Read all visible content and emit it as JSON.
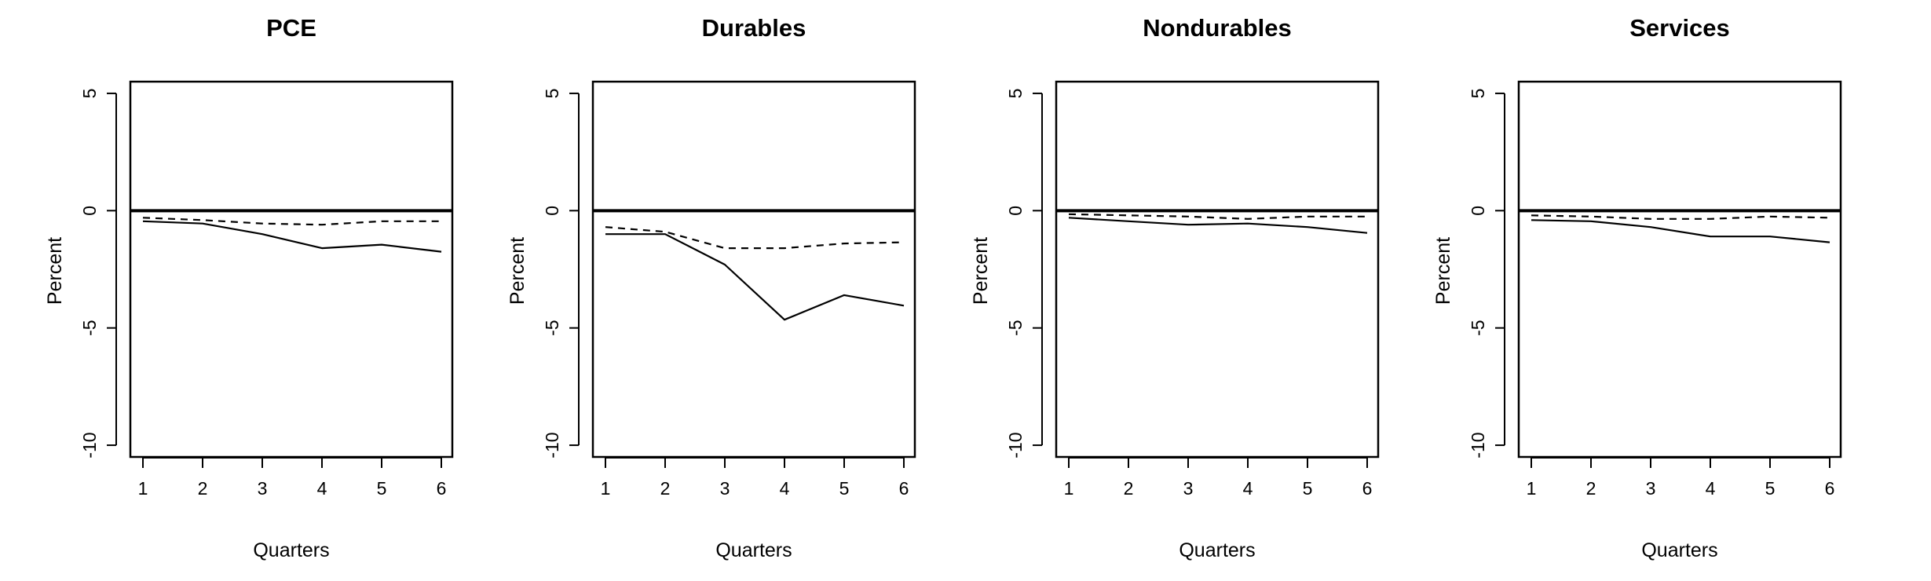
{
  "figure": {
    "chart_data": [
      {
        "type": "line",
        "title": "PCE",
        "xlabel": "Quarters",
        "ylabel": "Percent",
        "x": [
          1,
          2,
          3,
          4,
          5,
          6
        ],
        "ylim": [
          -10.5,
          5.5
        ],
        "yticks": [
          5,
          0,
          -5,
          -10
        ],
        "grid": false,
        "reference_line": 0,
        "series": [
          {
            "style": "solid",
            "values": [
              -0.45,
              -0.55,
              -1.0,
              -1.6,
              -1.45,
              -1.75
            ]
          },
          {
            "style": "dashed",
            "values": [
              -0.3,
              -0.4,
              -0.55,
              -0.6,
              -0.45,
              -0.45
            ]
          }
        ]
      },
      {
        "type": "line",
        "title": "Durables",
        "xlabel": "Quarters",
        "ylabel": "Percent",
        "x": [
          1,
          2,
          3,
          4,
          5,
          6
        ],
        "ylim": [
          -10.5,
          5.5
        ],
        "yticks": [
          5,
          0,
          -5,
          -10
        ],
        "grid": false,
        "reference_line": 0,
        "series": [
          {
            "style": "solid",
            "values": [
              -1.0,
              -1.0,
              -2.3,
              -4.65,
              -3.6,
              -4.05
            ]
          },
          {
            "style": "dashed",
            "values": [
              -0.7,
              -0.9,
              -1.6,
              -1.6,
              -1.4,
              -1.35
            ]
          }
        ]
      },
      {
        "type": "line",
        "title": "Nondurables",
        "xlabel": "Quarters",
        "ylabel": "Percent",
        "x": [
          1,
          2,
          3,
          4,
          5,
          6
        ],
        "ylim": [
          -10.5,
          5.5
        ],
        "yticks": [
          5,
          0,
          -5,
          -10
        ],
        "grid": false,
        "reference_line": 0,
        "series": [
          {
            "style": "solid",
            "values": [
              -0.3,
              -0.45,
              -0.6,
              -0.55,
              -0.7,
              -0.95
            ]
          },
          {
            "style": "dashed",
            "values": [
              -0.15,
              -0.2,
              -0.25,
              -0.35,
              -0.25,
              -0.25
            ]
          }
        ]
      },
      {
        "type": "line",
        "title": "Services",
        "xlabel": "Quarters",
        "ylabel": "Percent",
        "x": [
          1,
          2,
          3,
          4,
          5,
          6
        ],
        "ylim": [
          -10.5,
          5.5
        ],
        "yticks": [
          5,
          0,
          -5,
          -10
        ],
        "grid": false,
        "reference_line": 0,
        "series": [
          {
            "style": "solid",
            "values": [
              -0.4,
              -0.45,
              -0.7,
              -1.1,
              -1.1,
              -1.35
            ]
          },
          {
            "style": "dashed",
            "values": [
              -0.2,
              -0.25,
              -0.35,
              -0.35,
              -0.25,
              -0.3
            ]
          }
        ]
      }
    ]
  }
}
